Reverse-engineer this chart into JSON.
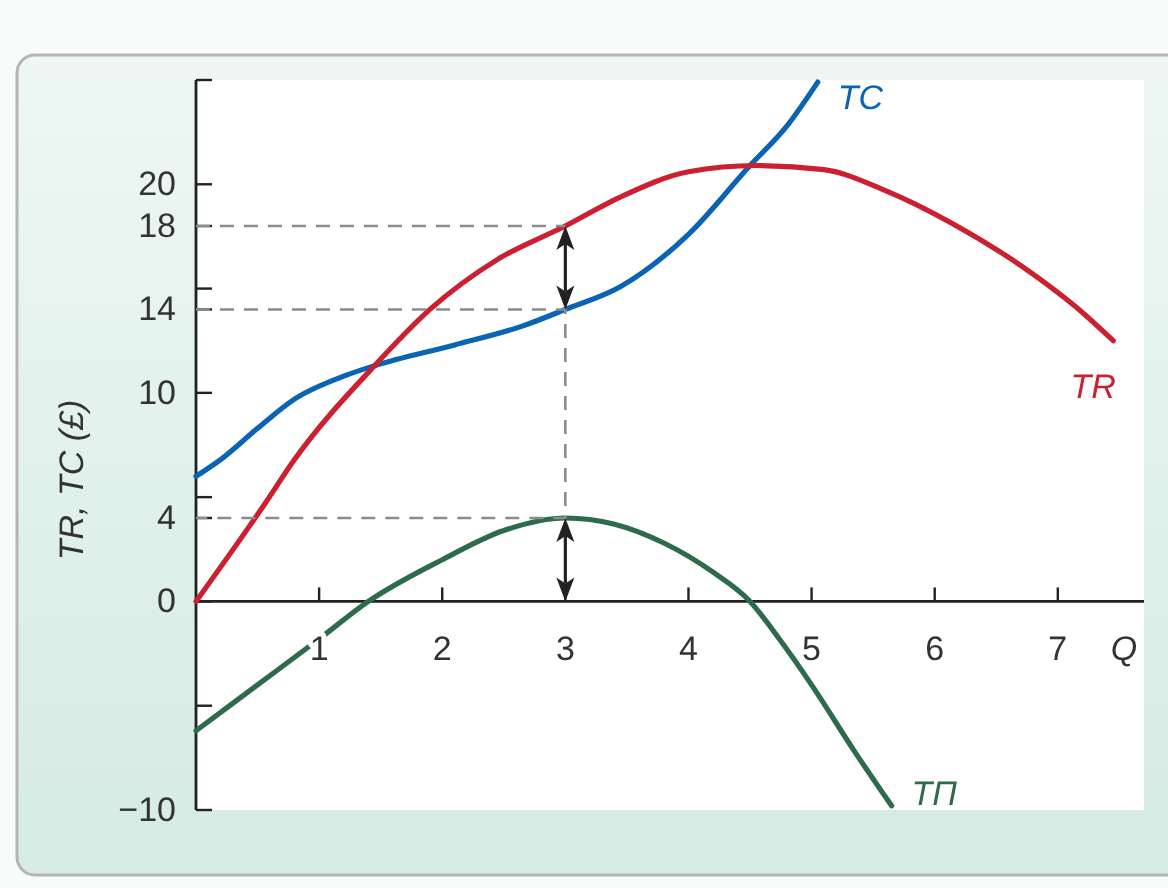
{
  "chart_data": {
    "type": "line",
    "xlabel": "Q",
    "ylabel": "TR, TC (£)",
    "xlim": [
      0,
      7.7
    ],
    "ylim": [
      -10,
      25
    ],
    "xticks": [
      1,
      2,
      3,
      4,
      5,
      6,
      7
    ],
    "yticks": [
      -10,
      {
        "value": -5,
        "label": null
      },
      0,
      4,
      {
        "value": 5,
        "label": null
      },
      10,
      14,
      {
        "value": 15,
        "label": null
      },
      18,
      20,
      {
        "value": 25,
        "label": null
      }
    ],
    "series": [
      {
        "name": "TC",
        "color": "#0b63b3",
        "x": [
          0,
          0.2,
          0.5,
          0.8,
          1.2,
          1.45,
          2.1,
          2.65,
          3,
          3.45,
          4,
          4.5,
          4.8,
          5.05
        ],
        "values": [
          6,
          6.8,
          8.3,
          9.7,
          10.8,
          11.3,
          12.3,
          13.2,
          14,
          15.1,
          17.6,
          20.9,
          22.8,
          24.9
        ]
      },
      {
        "name": "TR",
        "color": "#cc1f2f",
        "x": [
          0,
          0.55,
          0.8,
          1.45,
          1.9,
          2.45,
          3,
          3.45,
          4,
          4.55,
          5.1,
          5.6,
          6.15,
          6.7,
          7.15,
          7.45
        ],
        "values": [
          0,
          4.6,
          6.8,
          11.3,
          14,
          16.4,
          18,
          19.4,
          20.6,
          20.9,
          20.7,
          19.7,
          18.1,
          16.1,
          14.1,
          12.5
        ]
      },
      {
        "name": "TΠ",
        "color": "#2e6b4b",
        "x": [
          0,
          0.5,
          1,
          1.4,
          2,
          2.5,
          3,
          3.4,
          3.8,
          4.2,
          4.5,
          4.75,
          5,
          5.35,
          5.65
        ],
        "values": [
          -6.2,
          -4,
          -1.8,
          0,
          2,
          3.4,
          4,
          3.7,
          2.8,
          1.4,
          0,
          -1.9,
          -4,
          -7.2,
          -9.8
        ]
      },
      {
        "color": "#8c8c8c",
        "line_style": "dashed",
        "x": [
          0,
          3
        ],
        "values": [
          18,
          18
        ]
      },
      {
        "color": "#8c8c8c",
        "line_style": "dashed",
        "x": [
          0,
          3,
          3,
          0
        ],
        "values": [
          14,
          14,
          4,
          4
        ]
      }
    ]
  }
}
